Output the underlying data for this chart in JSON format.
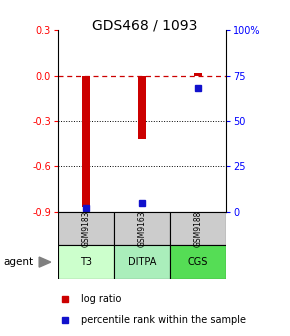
{
  "title": "GDS468 / 1093",
  "samples": [
    "GSM9183",
    "GSM9163",
    "GSM9188"
  ],
  "agents": [
    "T3",
    "DITPA",
    "CGS"
  ],
  "log_ratios": [
    -0.87,
    -0.42,
    0.02
  ],
  "percentile_ranks": [
    2.0,
    5.0,
    68.0
  ],
  "ylim_left": [
    -0.9,
    0.3
  ],
  "ylim_right": [
    0,
    100
  ],
  "left_ticks": [
    0.3,
    0.0,
    -0.3,
    -0.6,
    -0.9
  ],
  "right_ticks": [
    100,
    75,
    50,
    25,
    0
  ],
  "right_tick_labels": [
    "100%",
    "75",
    "50",
    "25",
    "0"
  ],
  "bar_color_red": "#cc0000",
  "bar_color_blue": "#1111cc",
  "agent_colors": [
    "#ccffcc",
    "#aaeebb",
    "#55dd55"
  ],
  "sample_bg_color": "#cccccc",
  "dashed_line_color": "#cc0000",
  "legend_red_label": "log ratio",
  "legend_blue_label": "percentile rank within the sample",
  "title_fontsize": 10,
  "tick_fontsize": 7,
  "label_fontsize": 7,
  "bar_width": 0.15
}
